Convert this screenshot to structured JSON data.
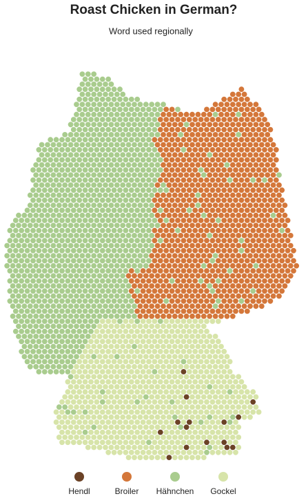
{
  "title": "Roast Chicken in German?",
  "subtitle": "Word used regionally",
  "legend": [
    {
      "label": "Hendl",
      "color": "#6b4226"
    },
    {
      "label": "Broiler",
      "color": "#d4773a"
    },
    {
      "label": "Hähnchen",
      "color": "#a9cc8e"
    },
    {
      "label": "Gockel",
      "color": "#d7e4a9"
    }
  ]
}
